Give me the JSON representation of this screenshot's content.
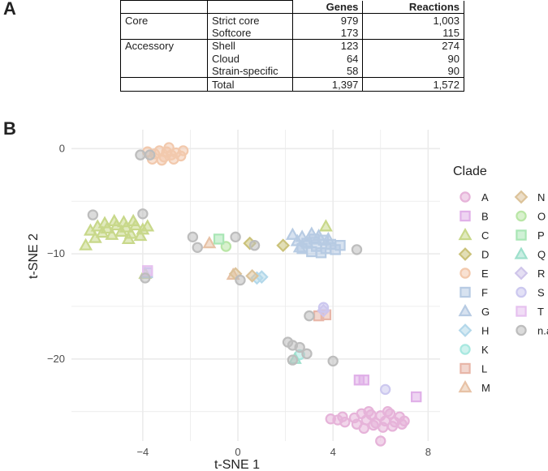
{
  "panel_a_label": "A",
  "panel_b_label": "B",
  "table": {
    "headers": [
      "",
      "",
      "Genes",
      "Reactions"
    ],
    "rows": [
      [
        "Core",
        "Strict core",
        "979",
        "1,003"
      ],
      [
        "",
        "Softcore",
        "173",
        "115"
      ],
      [
        "Accessory",
        "Shell",
        "123",
        "274"
      ],
      [
        "",
        "Cloud",
        "64",
        "90"
      ],
      [
        "",
        "Strain-specific",
        "58",
        "90"
      ],
      [
        "",
        "Total",
        "1,397",
        "1,572"
      ]
    ]
  },
  "chart_data": {
    "type": "scatter",
    "xlabel": "t-SNE 1",
    "ylabel": "t-SNE 2",
    "xlim": [
      -7,
      8.5
    ],
    "ylim": [
      -27.8,
      1.8
    ],
    "xticks": [
      -4,
      0,
      4,
      8
    ],
    "yticks": [
      0,
      -10,
      -20
    ],
    "grid": true,
    "legend_title": "Clade",
    "legend_position": "right",
    "series": [
      {
        "name": "A",
        "shape": "circle",
        "color": "#e6b3d9",
        "points": [
          [
            4.9,
            -25.6
          ],
          [
            5.2,
            -25.2
          ],
          [
            5.4,
            -25.8
          ],
          [
            5.6,
            -25.3
          ],
          [
            5.8,
            -26.1
          ],
          [
            6.0,
            -25.4
          ],
          [
            6.2,
            -25.9
          ],
          [
            6.4,
            -25.2
          ],
          [
            6.6,
            -26.0
          ],
          [
            6.8,
            -25.5
          ],
          [
            7.0,
            -25.9
          ],
          [
            5.0,
            -26.2
          ],
          [
            5.3,
            -26.6
          ],
          [
            5.7,
            -26.3
          ],
          [
            6.1,
            -26.5
          ],
          [
            6.5,
            -26.4
          ],
          [
            6.9,
            -26.2
          ],
          [
            5.5,
            -25.0
          ],
          [
            6.3,
            -25.0
          ],
          [
            4.2,
            -25.8
          ],
          [
            4.4,
            -25.5
          ],
          [
            4.5,
            -26.0
          ],
          [
            3.9,
            -25.7
          ],
          [
            6.0,
            -27.8
          ]
        ]
      },
      {
        "name": "B",
        "shape": "square",
        "color": "#e0b0e8",
        "points": [
          [
            5.1,
            -22.0
          ],
          [
            5.3,
            -22.0
          ],
          [
            7.5,
            -23.6
          ]
        ]
      },
      {
        "name": "C",
        "shape": "triangle",
        "color": "#c8d88a",
        "points": [
          [
            -6.4,
            -9.2
          ],
          [
            -6.2,
            -7.8
          ],
          [
            -5.9,
            -7.4
          ],
          [
            -5.7,
            -8.0
          ],
          [
            -5.5,
            -7.6
          ],
          [
            -5.3,
            -8.2
          ],
          [
            -5.1,
            -7.3
          ],
          [
            -4.9,
            -7.9
          ],
          [
            -4.7,
            -7.5
          ],
          [
            -4.5,
            -8.1
          ],
          [
            -4.3,
            -7.3
          ],
          [
            -4.1,
            -8.3
          ],
          [
            -4.0,
            -7.7
          ],
          [
            -3.8,
            -7.4
          ],
          [
            -5.6,
            -7.1
          ],
          [
            -5.2,
            -6.9
          ],
          [
            -4.8,
            -7.0
          ],
          [
            -4.4,
            -6.9
          ],
          [
            -6.0,
            -8.5
          ],
          [
            -4.6,
            -8.6
          ],
          [
            -3.9,
            -11.9
          ],
          [
            3.7,
            -7.4
          ]
        ]
      },
      {
        "name": "D",
        "shape": "diamond",
        "color": "#cbc27a",
        "points": [
          [
            0.5,
            -9.0
          ],
          [
            1.9,
            -9.2
          ]
        ]
      },
      {
        "name": "E",
        "shape": "circle",
        "color": "#f2c9ad",
        "points": [
          [
            -3.8,
            -0.3
          ],
          [
            -3.5,
            -0.5
          ],
          [
            -3.3,
            -0.2
          ],
          [
            -3.1,
            -0.8
          ],
          [
            -3.0,
            -0.3
          ],
          [
            -2.8,
            -0.6
          ],
          [
            -2.6,
            -0.4
          ],
          [
            -2.4,
            -0.7
          ],
          [
            -2.3,
            -0.2
          ],
          [
            -3.6,
            -1.0
          ],
          [
            -3.2,
            -1.1
          ],
          [
            -2.7,
            -1.0
          ],
          [
            -2.9,
            0.1
          ]
        ]
      },
      {
        "name": "F",
        "shape": "square",
        "color": "#b7cbe3",
        "points": [
          [
            2.7,
            -9.5
          ],
          [
            2.9,
            -9.0
          ],
          [
            3.1,
            -9.8
          ],
          [
            3.3,
            -9.3
          ],
          [
            3.5,
            -9.9
          ],
          [
            3.7,
            -9.5
          ],
          [
            3.9,
            -9.1
          ],
          [
            4.1,
            -9.6
          ],
          [
            4.3,
            -9.2
          ],
          [
            3.2,
            -8.6
          ],
          [
            3.6,
            -8.7
          ],
          [
            -3.8,
            -11.8
          ]
        ]
      },
      {
        "name": "G",
        "shape": "triangle",
        "color": "#b7cbe3",
        "points": [
          [
            2.3,
            -8.2
          ],
          [
            2.5,
            -8.8
          ],
          [
            2.7,
            -8.4
          ],
          [
            2.9,
            -8.9
          ],
          [
            3.1,
            -8.1
          ],
          [
            3.4,
            -8.3
          ],
          [
            2.6,
            -9.4
          ],
          [
            3.8,
            -8.6
          ]
        ]
      },
      {
        "name": "H",
        "shape": "diamond",
        "color": "#b3d8ea",
        "points": [
          [
            0.8,
            -12.3
          ],
          [
            1.0,
            -12.2
          ]
        ]
      },
      {
        "name": "K",
        "shape": "circle",
        "color": "#a8e8e0",
        "points": [
          [
            2.6,
            -19.6
          ]
        ]
      },
      {
        "name": "L",
        "shape": "square",
        "color": "#e8b6a8",
        "points": [
          [
            3.4,
            -15.9
          ],
          [
            3.7,
            -15.8
          ]
        ]
      },
      {
        "name": "M",
        "shape": "triangle",
        "color": "#e7c2a6",
        "points": [
          [
            -1.2,
            -9.0
          ],
          [
            -0.2,
            -12.0
          ]
        ]
      },
      {
        "name": "N",
        "shape": "diamond",
        "color": "#dcc39a",
        "points": [
          [
            0.6,
            -12.1
          ],
          [
            -0.1,
            -11.9
          ]
        ]
      },
      {
        "name": "O",
        "shape": "circle",
        "color": "#b9e6a6",
        "points": [
          [
            -0.5,
            -9.3
          ]
        ]
      },
      {
        "name": "P",
        "shape": "square",
        "color": "#a9e6b5",
        "points": [
          [
            -0.8,
            -8.6
          ]
        ]
      },
      {
        "name": "Q",
        "shape": "triangle",
        "color": "#9ee0cc",
        "points": [
          [
            2.4,
            -20.0
          ]
        ]
      },
      {
        "name": "R",
        "shape": "diamond",
        "color": "#cfc5ea",
        "points": [
          [
            3.6,
            -15.4
          ]
        ]
      },
      {
        "name": "S",
        "shape": "circle",
        "color": "#ccc8ef",
        "points": [
          [
            3.6,
            -15.1
          ],
          [
            6.2,
            -22.9
          ]
        ]
      },
      {
        "name": "T",
        "shape": "square",
        "color": "#e6c1ef",
        "points": [
          [
            -3.8,
            -11.6
          ]
        ]
      },
      {
        "name": "n.a.",
        "shape": "circle",
        "color": "#bdbdbd",
        "points": [
          [
            -6.1,
            -6.3
          ],
          [
            -4.0,
            -6.2
          ],
          [
            -4.1,
            -0.6
          ],
          [
            -3.7,
            -0.6
          ],
          [
            -1.9,
            -8.4
          ],
          [
            -1.7,
            -9.4
          ],
          [
            -0.1,
            -8.4
          ],
          [
            0.7,
            -9.2
          ],
          [
            0.1,
            -12.5
          ],
          [
            5.0,
            -9.6
          ],
          [
            2.1,
            -18.4
          ],
          [
            2.3,
            -18.7
          ],
          [
            2.6,
            -18.9
          ],
          [
            2.9,
            -19.5
          ],
          [
            2.3,
            -20.1
          ],
          [
            3.0,
            -15.9
          ],
          [
            4.0,
            -20.2
          ],
          [
            -3.9,
            -12.3
          ]
        ]
      }
    ]
  }
}
